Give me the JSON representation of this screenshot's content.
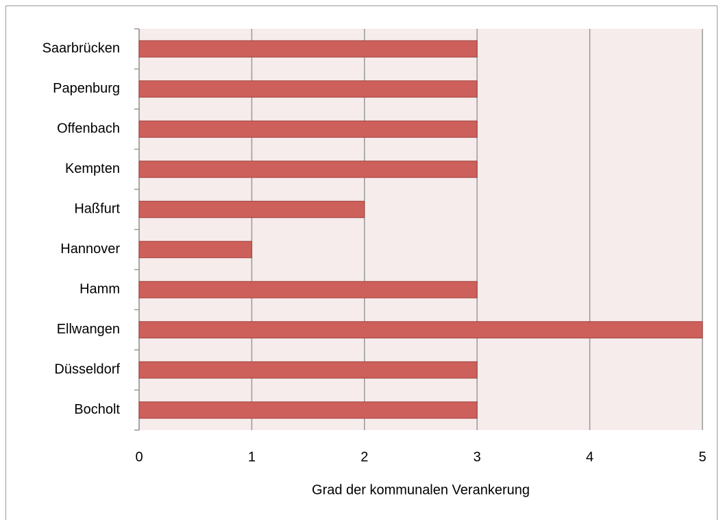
{
  "chart_data": {
    "type": "bar",
    "orientation": "horizontal",
    "categories": [
      "Saarbrücken",
      "Papenburg",
      "Offenbach",
      "Kempten",
      "Haßfurt",
      "Hannover",
      "Hamm",
      "Ellwangen",
      "Düsseldorf",
      "Bocholt"
    ],
    "values": [
      3,
      3,
      3,
      3,
      2,
      1,
      3,
      5,
      3,
      3
    ],
    "color": "#cd605b",
    "xlabel": "Grad der kommunalen Verankerung",
    "xlim": [
      0,
      5
    ],
    "xticks": [
      0,
      1,
      2,
      3,
      4,
      5
    ],
    "grid": true
  }
}
